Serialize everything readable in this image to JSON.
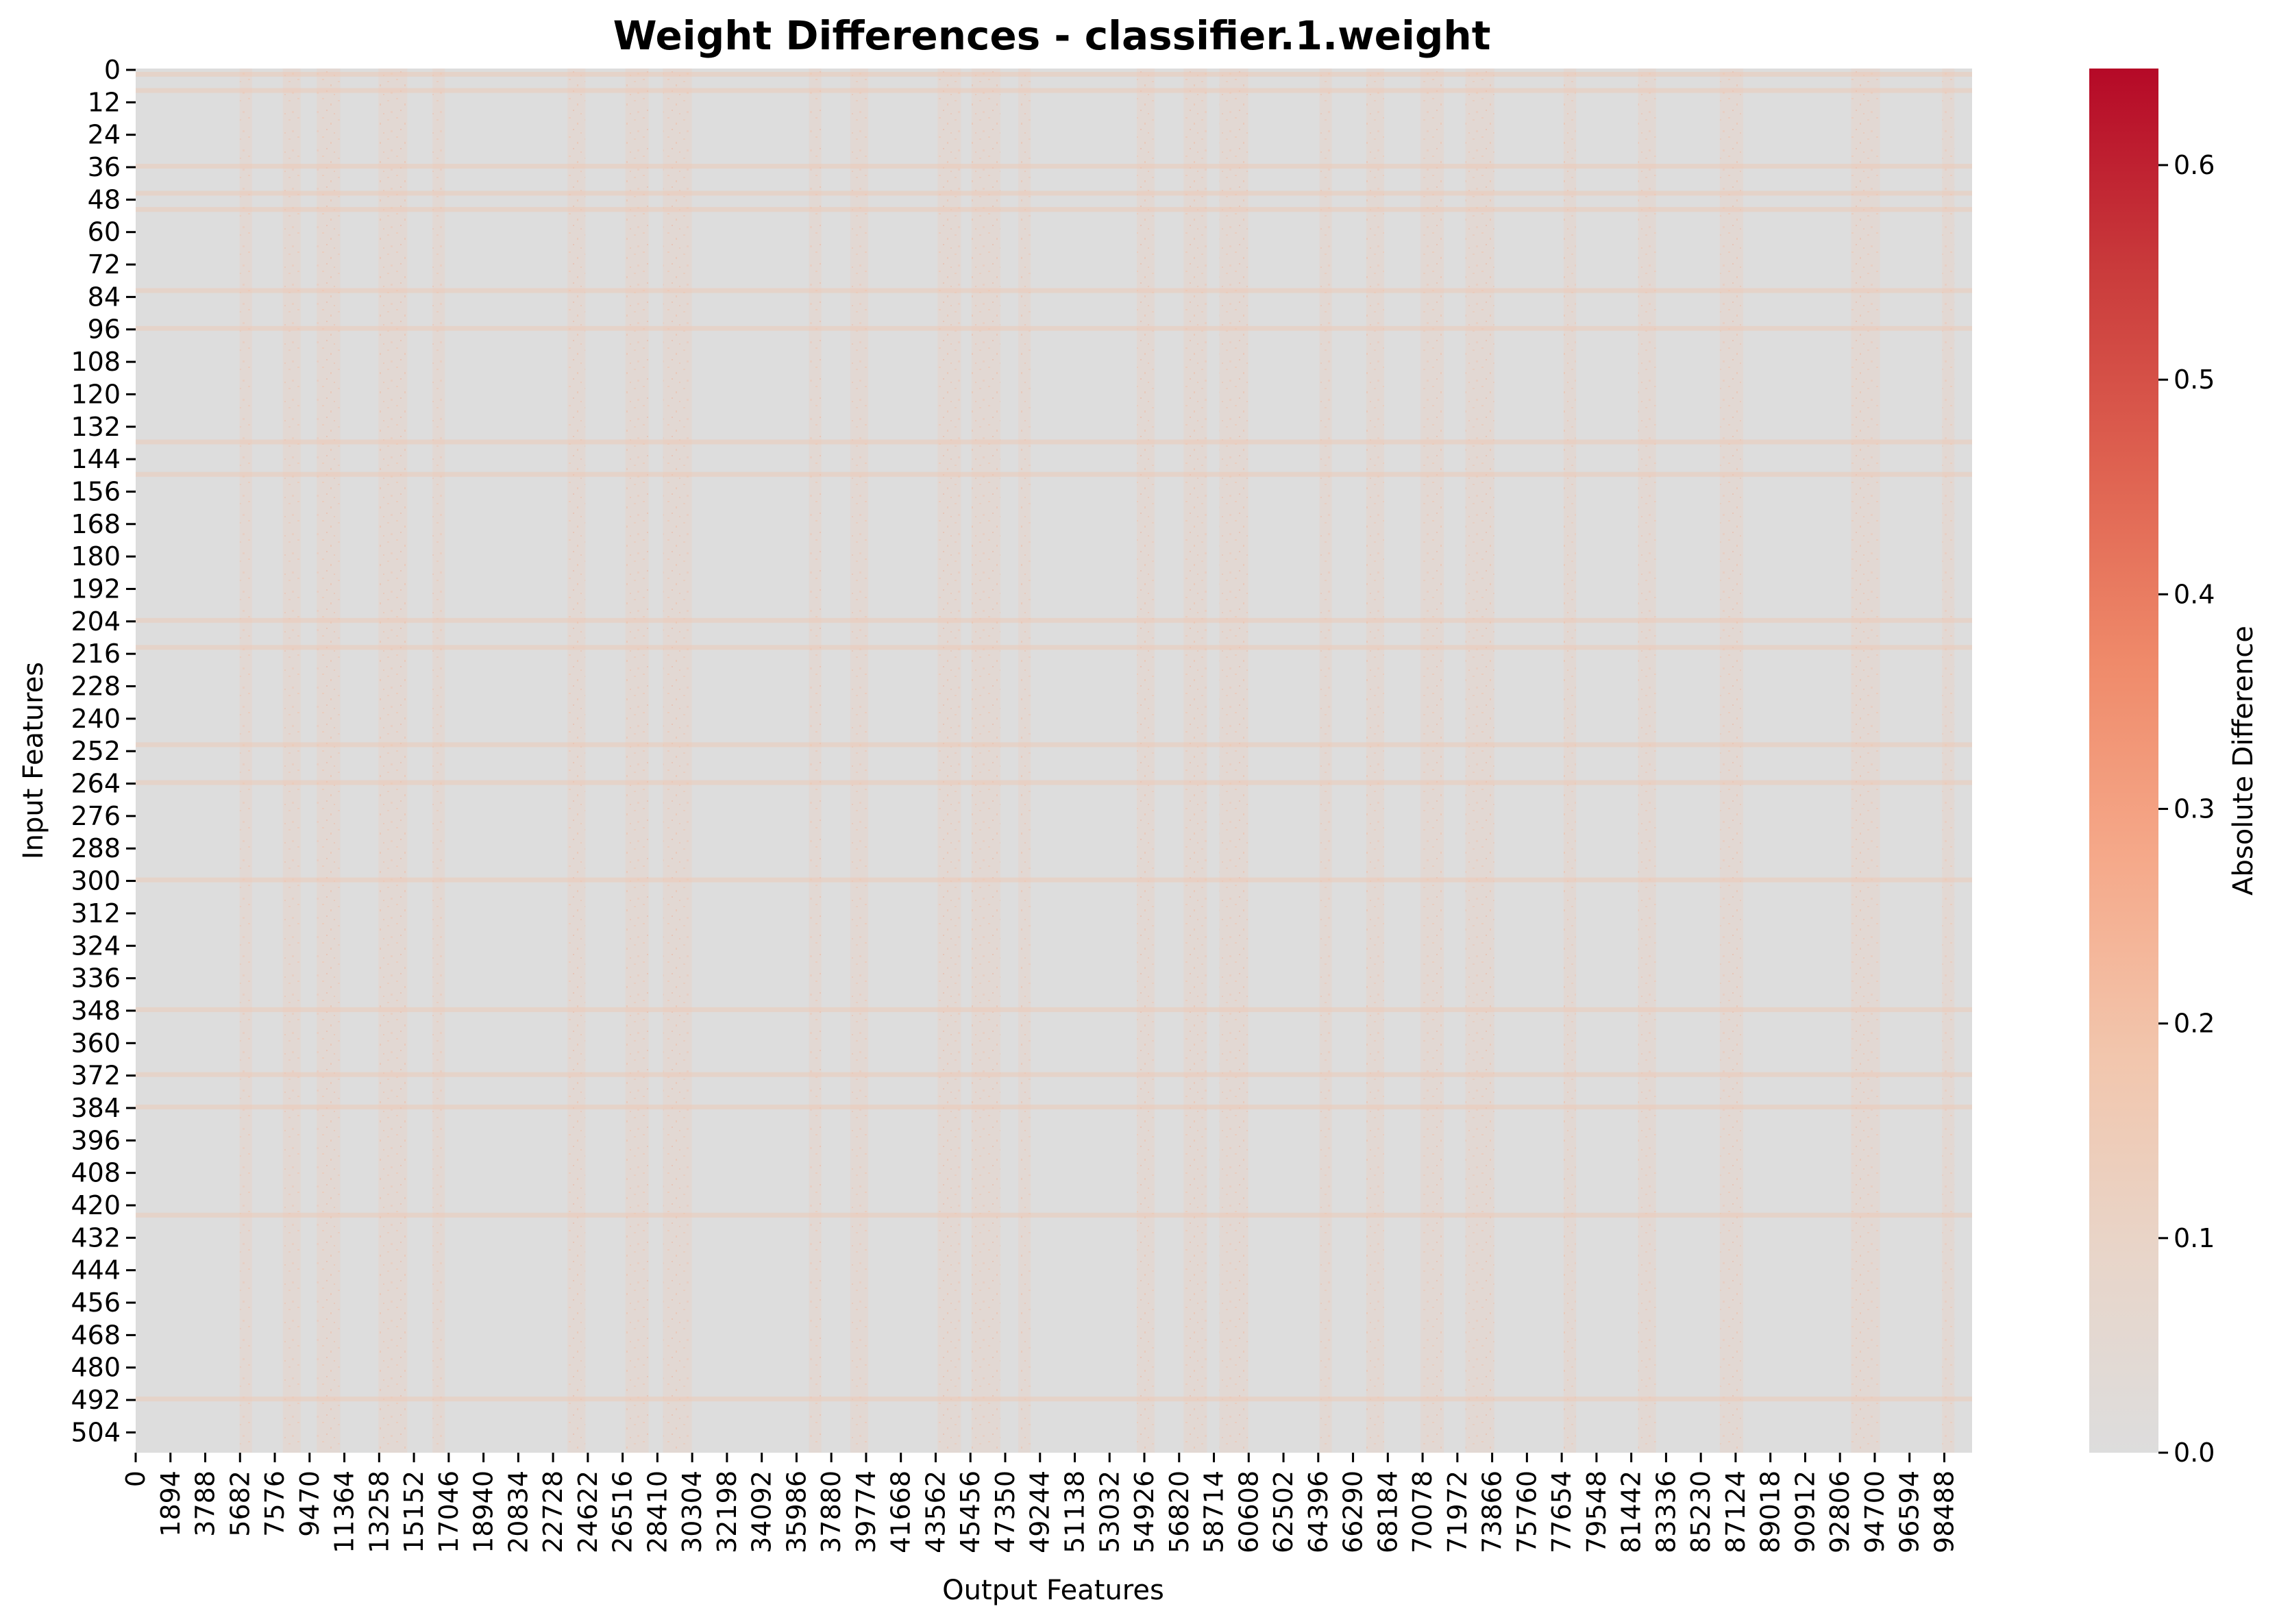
{
  "chart_data": {
    "type": "heatmap",
    "title": "Weight Differences - classifier.1.weight",
    "xlabel": "Output Features",
    "ylabel": "Input Features",
    "x_tick_labels": [
      "0",
      "1894",
      "3788",
      "5682",
      "7576",
      "9470",
      "11364",
      "13258",
      "15152",
      "17046",
      "18940",
      "20834",
      "22728",
      "24622",
      "26516",
      "28410",
      "30304",
      "32198",
      "34092",
      "35986",
      "37880",
      "39774",
      "41668",
      "43562",
      "45456",
      "47350",
      "49244",
      "51138",
      "53032",
      "54926",
      "56820",
      "58714",
      "60608",
      "62502",
      "64396",
      "66290",
      "68184",
      "70078",
      "71972",
      "73866",
      "75760",
      "77654",
      "79548",
      "81442",
      "83336",
      "85230",
      "87124",
      "89018",
      "90912",
      "92806",
      "94700",
      "96594",
      "98488"
    ],
    "y_tick_labels": [
      "0",
      "12",
      "24",
      "36",
      "48",
      "60",
      "72",
      "84",
      "96",
      "108",
      "120",
      "132",
      "144",
      "156",
      "168",
      "180",
      "192",
      "204",
      "216",
      "228",
      "240",
      "252",
      "264",
      "276",
      "288",
      "300",
      "312",
      "324",
      "336",
      "348",
      "360",
      "372",
      "384",
      "396",
      "408",
      "420",
      "432",
      "444",
      "456",
      "468",
      "480",
      "492",
      "504"
    ],
    "x_range": [
      0,
      100000
    ],
    "y_range": [
      0,
      512
    ],
    "colorbar": {
      "label": "Absolute Difference",
      "ticks": [
        "0.0",
        "0.1",
        "0.2",
        "0.3",
        "0.4",
        "0.5",
        "0.6"
      ],
      "range": [
        0,
        0.645
      ],
      "colormap": "coolwarm (lower half light grey to dark red)",
      "colors": [
        "#dddddd",
        "#e8d5c9",
        "#f2c6ad",
        "#f5a98a",
        "#ef8a6a",
        "#de6150",
        "#c93a3b",
        "#b50927"
      ]
    },
    "background_value": 0.0,
    "column_bands_output_features": [
      6000,
      8500,
      10500,
      14000,
      16500,
      24000,
      27300,
      29500,
      37000,
      39400,
      44300,
      46300,
      48400,
      55000,
      57700,
      59800,
      64800,
      67500,
      70600,
      73200,
      78100,
      82300,
      86900,
      94200,
      98700
    ],
    "row_bands_input_features": [
      2,
      8,
      36,
      46,
      52,
      82,
      96,
      138,
      150,
      204,
      214,
      250,
      264,
      300,
      348,
      372,
      384,
      424,
      492
    ],
    "grid": false
  }
}
